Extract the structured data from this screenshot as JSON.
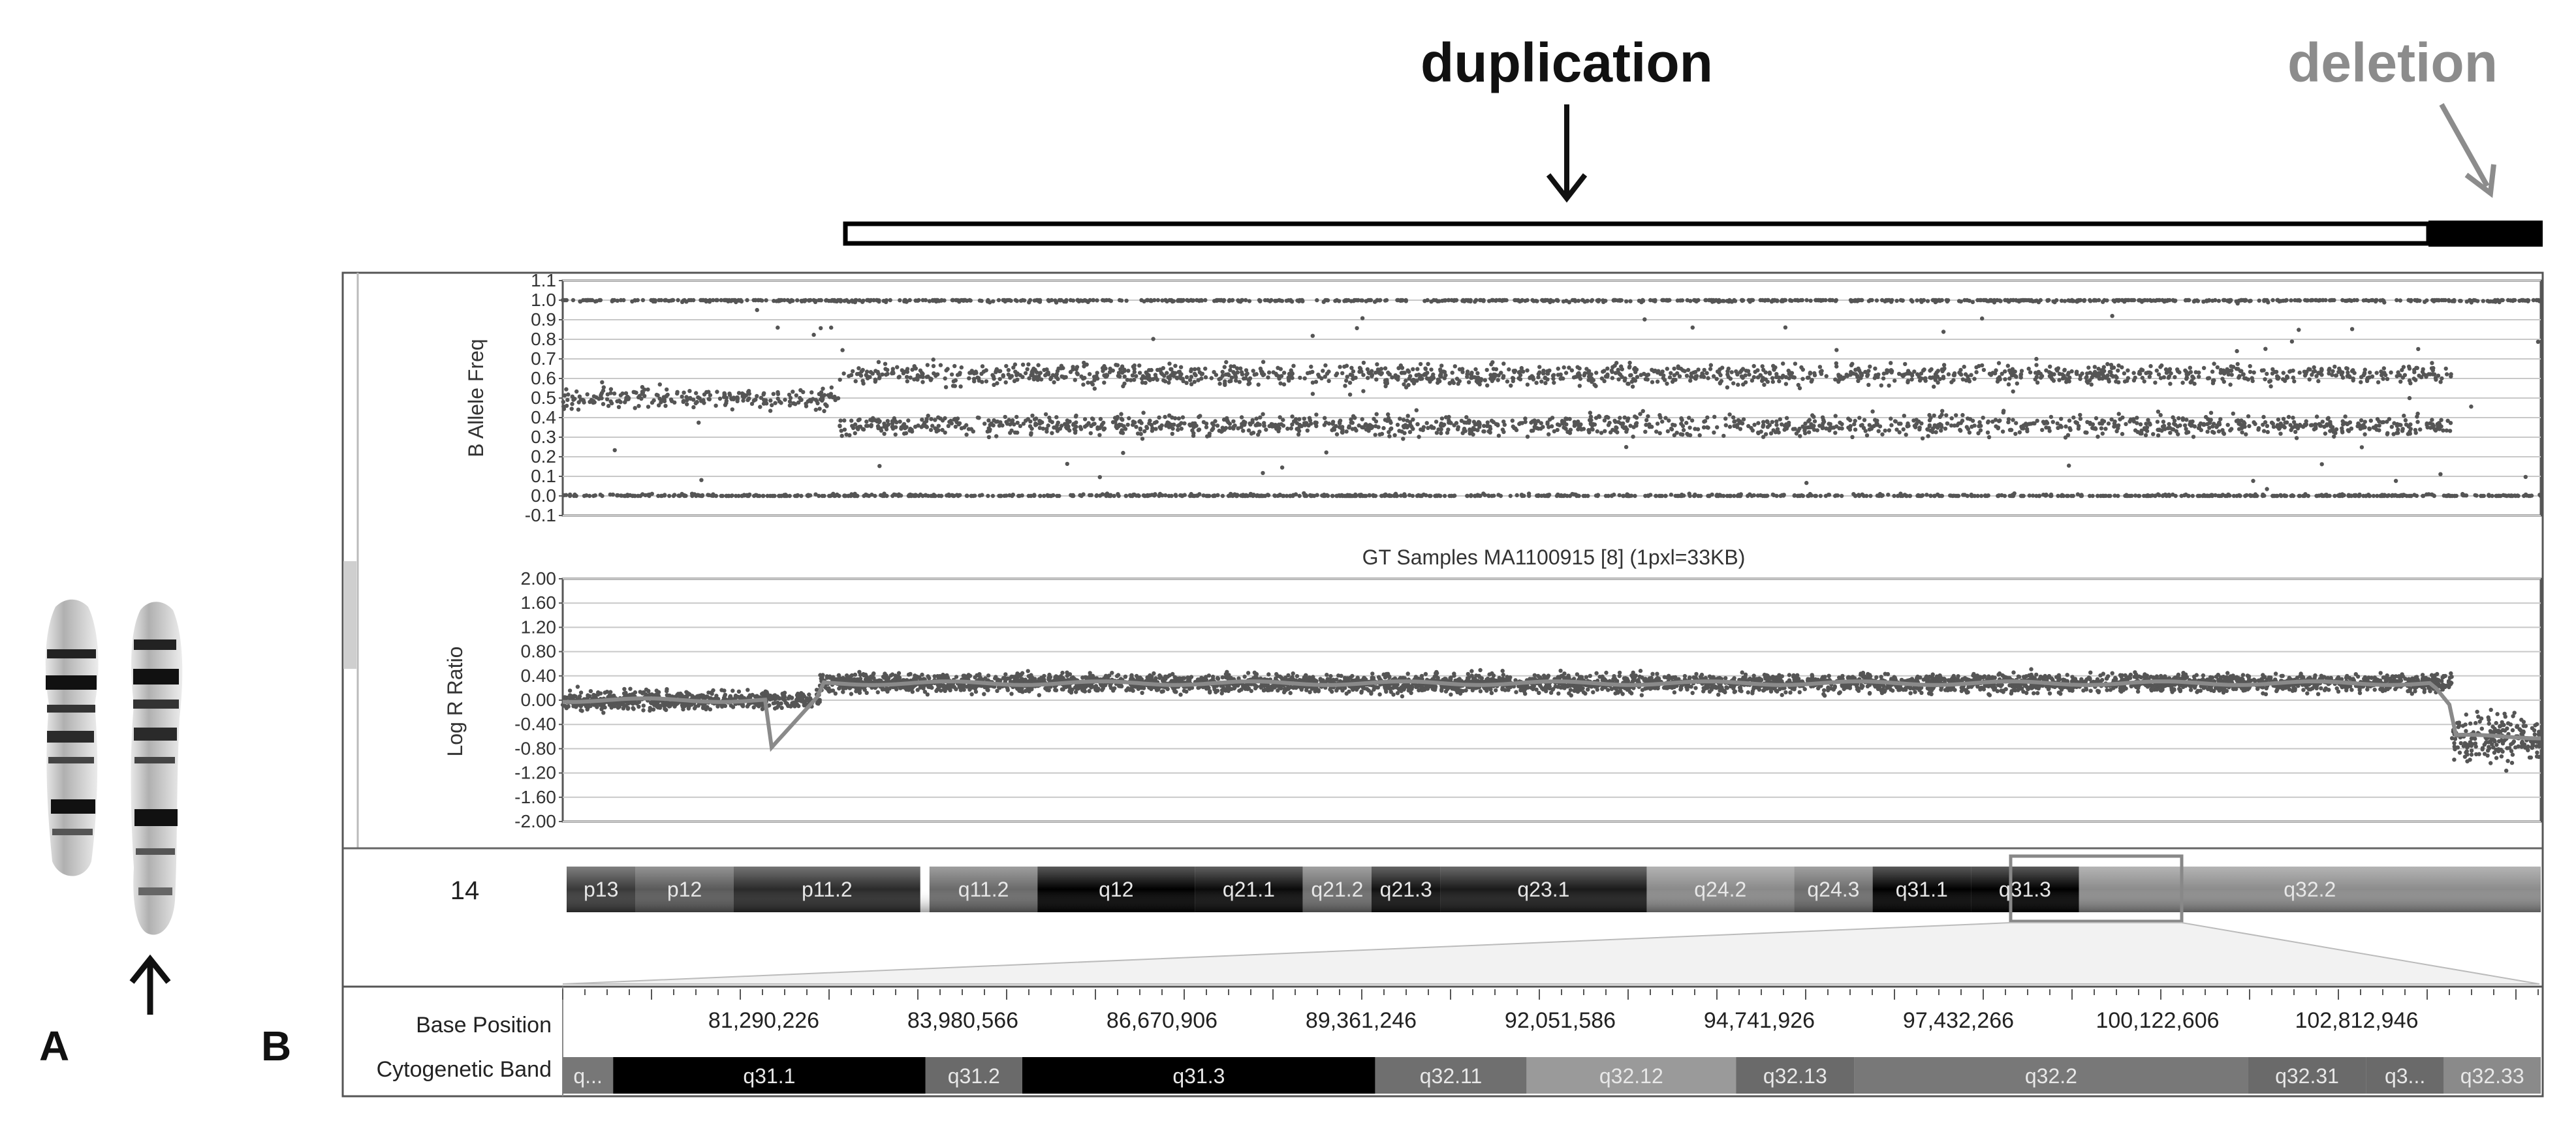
{
  "annotations": {
    "duplication_label": "duplication",
    "deletion_label": "deletion",
    "panel_a": "A",
    "panel_b": "B"
  },
  "colors": {
    "duplication": "#111111",
    "deletion": "#8c8c8c",
    "points": "#555555",
    "trend": "#8a8a8a",
    "grid": "#c8c8c8"
  },
  "viewer": {
    "sample_title": "GT Samples MA1100915 [8]  (1pxl=33KB)",
    "chromosome": "14",
    "base_position_label": "Base Position",
    "cytoband_label": "Cytogenetic Band"
  },
  "chart_data": [
    {
      "type": "scatter",
      "name": "baf",
      "title": "",
      "ylabel": "B Allele Freq",
      "ylim": [
        -0.1,
        1.1
      ],
      "yticks": [
        "1.1",
        "1.0",
        "0.9",
        "0.8",
        "0.7",
        "0.6",
        "0.5",
        "0.4",
        "0.3",
        "0.2",
        "0.1",
        "0.0",
        "-0.1"
      ],
      "grid": true,
      "segments": [
        {
          "x_start": 0.0,
          "x_end": 0.14,
          "bands": [
            0.0,
            0.5,
            1.0
          ]
        },
        {
          "x_start": 0.14,
          "x_end": 0.955,
          "bands": [
            0.0,
            0.36,
            0.62,
            1.0
          ]
        },
        {
          "x_start": 0.955,
          "x_end": 1.0,
          "bands": [
            0.0,
            1.0
          ]
        }
      ]
    },
    {
      "type": "scatter",
      "name": "lrr",
      "title": "GT Samples MA1100915 [8]  (1pxl=33KB)",
      "ylabel": "Log R Ratio",
      "ylim": [
        -2.0,
        2.0
      ],
      "yticks": [
        "2.00",
        "1.60",
        "1.20",
        "0.80",
        "0.40",
        "0.00",
        "-0.40",
        "-0.80",
        "-1.20",
        "-1.60",
        "-2.00"
      ],
      "grid": true,
      "segments": [
        {
          "x_start": 0.0,
          "x_end": 0.13,
          "mean": 0.0
        },
        {
          "x_start": 0.13,
          "x_end": 0.955,
          "mean": 0.28
        },
        {
          "x_start": 0.955,
          "x_end": 1.0,
          "mean": -0.6
        }
      ]
    }
  ],
  "ideogram": [
    {
      "label": "p13",
      "shade": "#3a3a3a"
    },
    {
      "label": "p12",
      "shade": "#5a5a5a"
    },
    {
      "label": "p11.2",
      "shade": "#2a2a2a"
    },
    {
      "label": "q11.2",
      "shade": "#6a6a6a"
    },
    {
      "label": "q12",
      "shade": "#000000"
    },
    {
      "label": "q21.1",
      "shade": "#0a0a0a"
    },
    {
      "label": "q21.2",
      "shade": "#6d6d6d"
    },
    {
      "label": "q21.3",
      "shade": "#111111"
    },
    {
      "label": "q23.1",
      "shade": "#1a1a1a"
    },
    {
      "label": "q24.2",
      "shade": "#8a8a8a"
    },
    {
      "label": "q24.3",
      "shade": "#6e6e6e"
    },
    {
      "label": "q31.1",
      "shade": "#000000"
    },
    {
      "label": "q31.3",
      "shade": "#000000"
    },
    {
      "label": "q32.2",
      "shade": "#8c8c8c"
    }
  ],
  "base_positions": [
    "81,290,226",
    "83,980,566",
    "86,670,906",
    "89,361,246",
    "92,051,586",
    "94,741,926",
    "97,432,266",
    "100,122,606",
    "102,812,946"
  ],
  "cytobands": [
    {
      "label": "q...",
      "shade": "#777777"
    },
    {
      "label": "q31.1",
      "shade": "#000000"
    },
    {
      "label": "q31.2",
      "shade": "#6a6a6a"
    },
    {
      "label": "q31.3",
      "shade": "#000000"
    },
    {
      "label": "q32.11",
      "shade": "#6f6f6f"
    },
    {
      "label": "q32.12",
      "shade": "#9a9a9a"
    },
    {
      "label": "q32.13",
      "shade": "#6a6a6a"
    },
    {
      "label": "q32.2",
      "shade": "#787878"
    },
    {
      "label": "q32.31",
      "shade": "#6a6a6a"
    },
    {
      "label": "q3...",
      "shade": "#6a6a6a"
    },
    {
      "label": "q32.33",
      "shade": "#8a8a8a"
    }
  ]
}
